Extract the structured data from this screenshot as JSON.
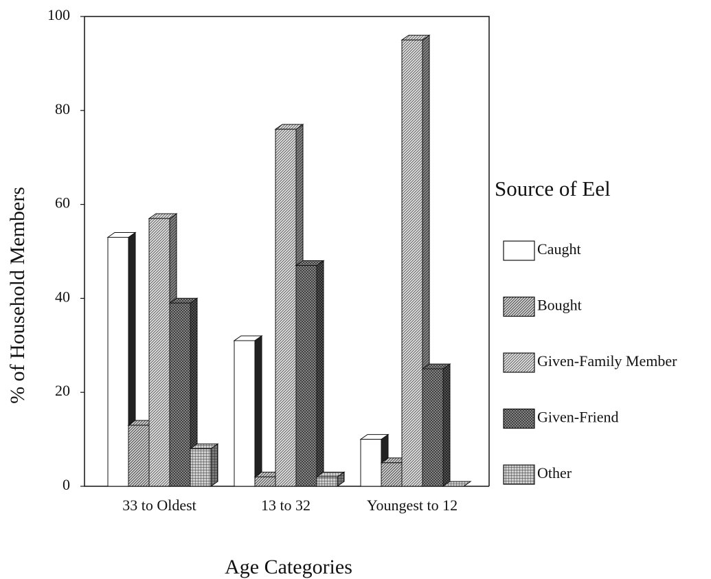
{
  "chart_data": {
    "type": "bar",
    "x_label": "Age Categories",
    "y_label": "% of Household Members",
    "legend_title": "Source of Eel",
    "legend_position": "right",
    "categories": [
      "33 to Oldest",
      "13 to 32",
      "Youngest to 12"
    ],
    "series": [
      {
        "name": "Caught",
        "color": "#ffffff",
        "values": [
          53,
          31,
          10
        ]
      },
      {
        "name": "Bought",
        "color": "#d4d4d4",
        "values": [
          13,
          2,
          5
        ]
      },
      {
        "name": "Given-Family Member",
        "color": "#dedede",
        "values": [
          57,
          76,
          95
        ]
      },
      {
        "name": "Given-Friend",
        "color": "#9a9a9a",
        "values": [
          39,
          47,
          25
        ]
      },
      {
        "name": "Other",
        "color": "#cfcfcf",
        "values": [
          8,
          2,
          0
        ]
      }
    ],
    "ylim": [
      0,
      100
    ],
    "yticks": [
      0,
      20,
      40,
      60,
      80,
      100
    ],
    "grid": false
  }
}
